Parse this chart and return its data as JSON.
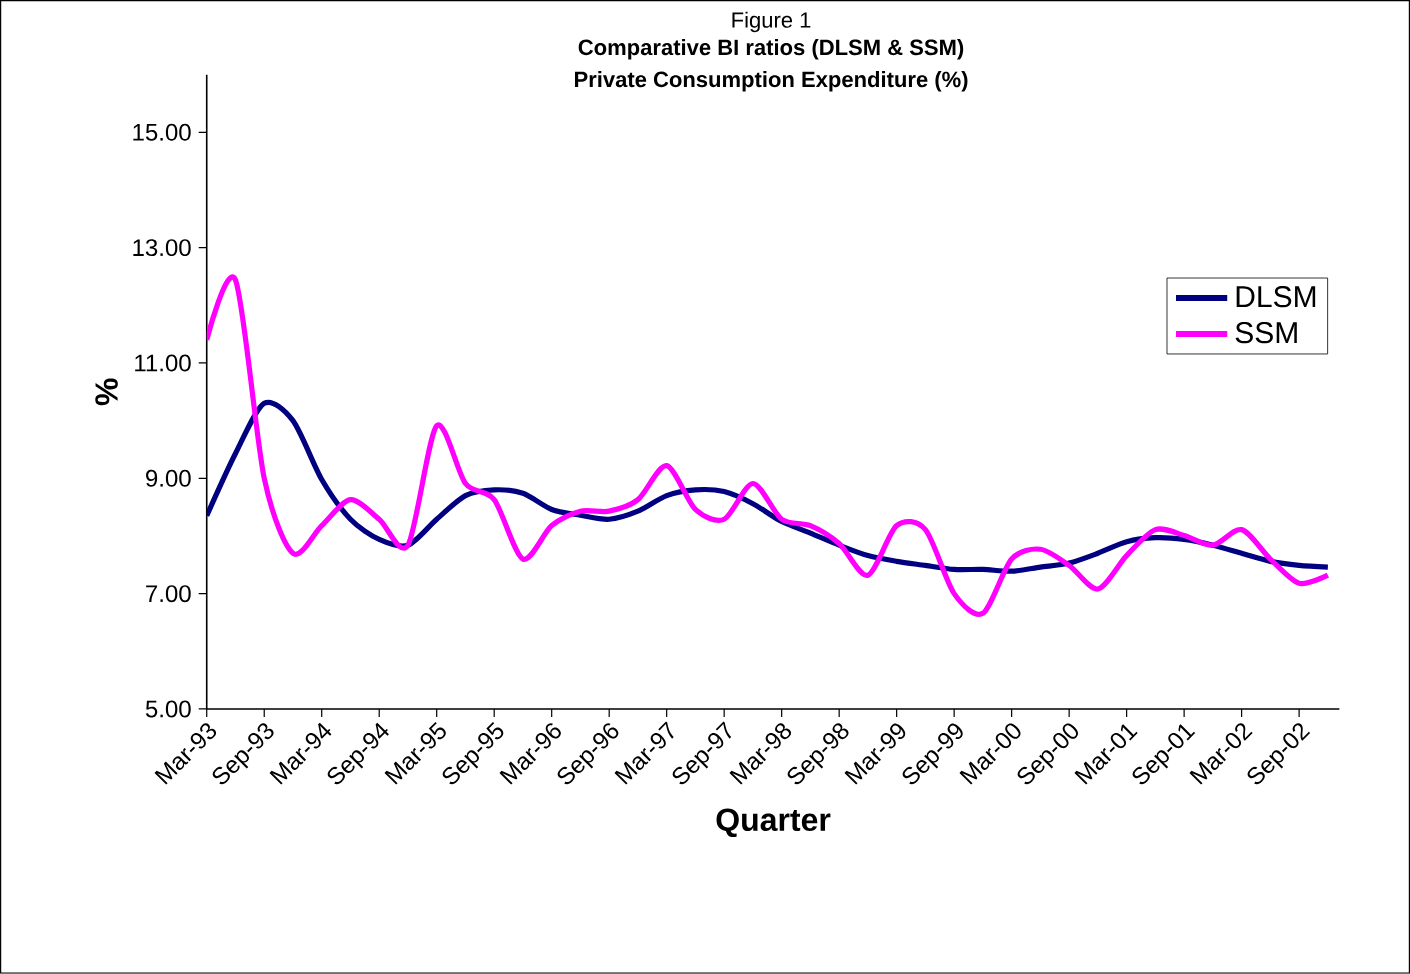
{
  "chart_data": {
    "type": "line",
    "title": "Figure 1",
    "subtitle": "Comparative BI ratios (DLSM & SSM)\nPrivate Consumption Expenditure (%)",
    "xlabel": "Quarter",
    "ylabel": "%",
    "categories": [
      "Mar-93",
      null,
      "Sep-93",
      null,
      "Mar-94",
      null,
      "Sep-94",
      null,
      "Mar-95",
      null,
      "Sep-95",
      null,
      "Mar-96",
      null,
      "Sep-96",
      null,
      "Mar-97",
      null,
      "Sep-97",
      null,
      "Mar-98",
      null,
      "Sep-98",
      null,
      "Mar-99",
      null,
      "Sep-99",
      null,
      "Mar-00",
      null,
      "Sep-00",
      null,
      "Mar-01",
      null,
      "Sep-01",
      null,
      "Mar-02",
      null,
      "Sep-02",
      null
    ],
    "series": [
      {
        "name": "DLSM",
        "color": "#000080",
        "values": [
          8.35,
          9.43,
          10.3,
          10.0,
          8.98,
          8.29,
          7.94,
          7.84,
          8.29,
          8.7,
          8.8,
          8.74,
          8.46,
          8.36,
          8.29,
          8.43,
          8.7,
          8.8,
          8.77,
          8.56,
          8.25,
          8.05,
          7.84,
          7.66,
          7.56,
          7.49,
          7.42,
          7.42,
          7.39,
          7.46,
          7.53,
          7.7,
          7.9,
          7.97,
          7.94,
          7.84,
          7.7,
          7.56,
          7.49,
          7.46
        ]
      },
      {
        "name": "SSM",
        "color": "#ff00ff",
        "values": [
          11.4,
          12.44,
          9.0,
          7.7,
          8.18,
          8.63,
          8.29,
          7.84,
          9.91,
          8.91,
          8.63,
          7.6,
          8.18,
          8.43,
          8.43,
          8.63,
          9.22,
          8.46,
          8.29,
          8.91,
          8.29,
          8.18,
          7.87,
          7.32,
          8.18,
          8.11,
          7.0,
          6.66,
          7.6,
          7.77,
          7.49,
          7.08,
          7.66,
          8.11,
          8.01,
          7.84,
          8.11,
          7.6,
          7.18,
          7.32
        ]
      }
    ],
    "ylim": [
      5,
      16
    ],
    "yticks": [
      {
        "value": 5,
        "label": "5.00"
      },
      {
        "value": 7,
        "label": "7.00"
      },
      {
        "value": 9,
        "label": "9.00"
      },
      {
        "value": 11,
        "label": "11.00"
      },
      {
        "value": 13,
        "label": "13.00"
      },
      {
        "value": 15,
        "label": "15.00"
      }
    ],
    "legend": "right",
    "grid": false,
    "marker": "none",
    "line_style": "solid"
  }
}
